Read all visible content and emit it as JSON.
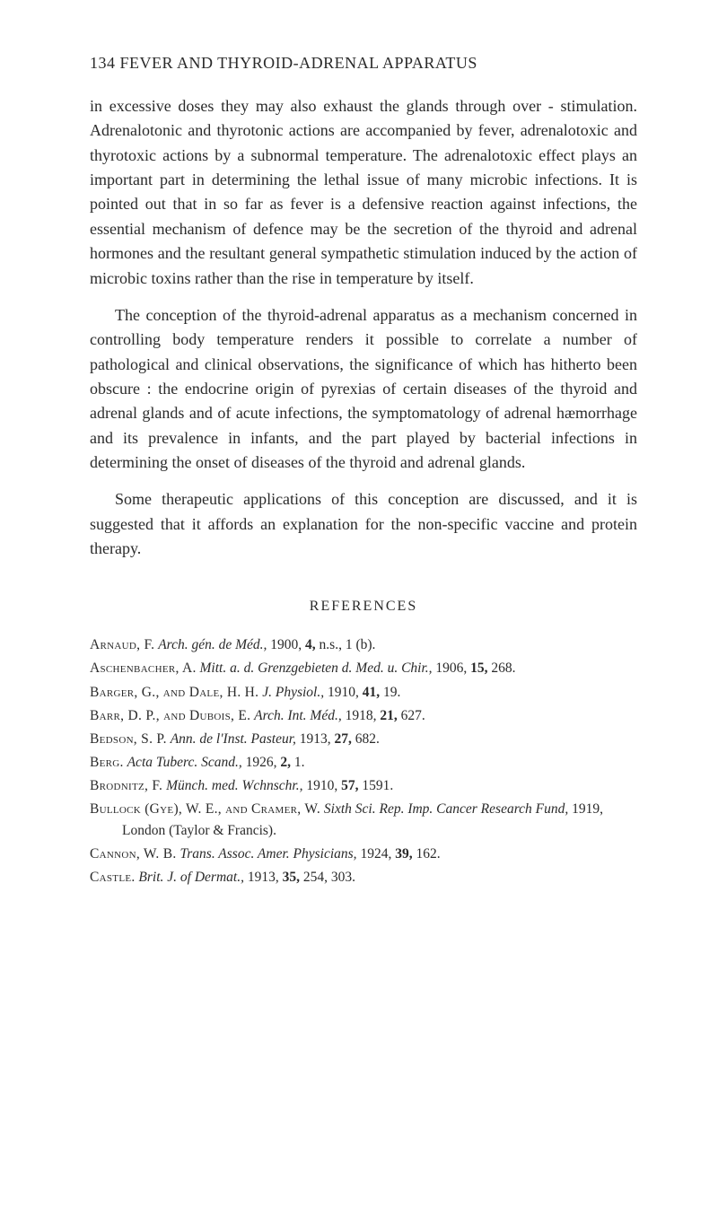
{
  "header": {
    "page_number": "134",
    "title": "FEVER AND THYROID-ADRENAL APPARATUS"
  },
  "paragraphs": {
    "p1": "in excessive doses they may also exhaust the glands through over - stimulation. Adrenalotonic and thyro­tonic actions are accompanied by fever, adrenalotoxic and thyrotoxic actions by a subnormal temperature. The adrenalotoxic effect plays an important part in determining the lethal issue of many microbic infections. It is pointed out that in so far as fever is a defensive reaction against infections, the essential mechanism of defence may be the secretion of the thyroid and adrenal hormones and the resultant general sympathetic stimu­lation induced by the action of microbic toxins rather than the rise in temperature by itself.",
    "p2": "The conception of the thyroid-adrenal apparatus as a mechanism concerned in controlling body temperature renders it possible to correlate a number of pathological and clinical observations, the significance of which has hitherto been obscure : the endocrine origin of pyrexias of certain diseases of the thyroid and adrenal glands and of acute infections, the symptomatology of adrenal hæmorrhage and its prevalence in infants, and the part played by bacterial infections in determining the onset of diseases of the thyroid and adrenal glands.",
    "p3": "Some therapeutic applications of this conception are discussed, and it is suggested that it affords an explanation for the non-specific vaccine and protein therapy."
  },
  "references": {
    "heading": "REFERENCES",
    "entries": [
      {
        "author": "Arnaud, F.",
        "rest_pre": "Arch. gén. de Méd.,",
        "rest_post": " 1900, ",
        "vol": "4,",
        "tail": " n.s., 1 (b)."
      },
      {
        "author": "Aschenbacher, A.",
        "rest_pre": "Mitt. a. d. Grenzgebieten d. Med. u. Chir.,",
        "rest_post": " 1906, ",
        "vol": "15,",
        "tail": " 268."
      },
      {
        "author": "Barger, G., and Dale, H. H.",
        "rest_pre": "J. Physiol.,",
        "rest_post": " 1910, ",
        "vol": "41,",
        "tail": " 19."
      },
      {
        "author": "Barr, D. P., and Dubois, E.",
        "rest_pre": "Arch. Int. Méd.,",
        "rest_post": " 1918, ",
        "vol": "21,",
        "tail": " 627."
      },
      {
        "author": "Bedson, S. P.",
        "rest_pre": "Ann. de l'Inst. Pasteur,",
        "rest_post": " 1913, ",
        "vol": "27,",
        "tail": " 682."
      },
      {
        "author": "Berg.",
        "rest_pre": "Acta Tuberc. Scand.,",
        "rest_post": " 1926, ",
        "vol": "2,",
        "tail": " 1."
      },
      {
        "author": "Brodnitz, F.",
        "rest_pre": "Münch. med. Wchnschr.,",
        "rest_post": " 1910, ",
        "vol": "57,",
        "tail": " 1591."
      },
      {
        "author": "Bullock (Gye), W. E., and Cramer, W.",
        "rest_pre": "Sixth Sci. Rep. Imp. Cancer Research Fund,",
        "rest_post": " 1919, London (Taylor & Francis).",
        "vol": "",
        "tail": ""
      },
      {
        "author": "Cannon, W. B.",
        "rest_pre": "Trans. Assoc. Amer. Physicians,",
        "rest_post": " 1924, ",
        "vol": "39,",
        "tail": " 162."
      },
      {
        "author": "Castle.",
        "rest_pre": "Brit. J. of Dermat.,",
        "rest_post": " 1913, ",
        "vol": "35,",
        "tail": " 254, 303."
      }
    ]
  }
}
